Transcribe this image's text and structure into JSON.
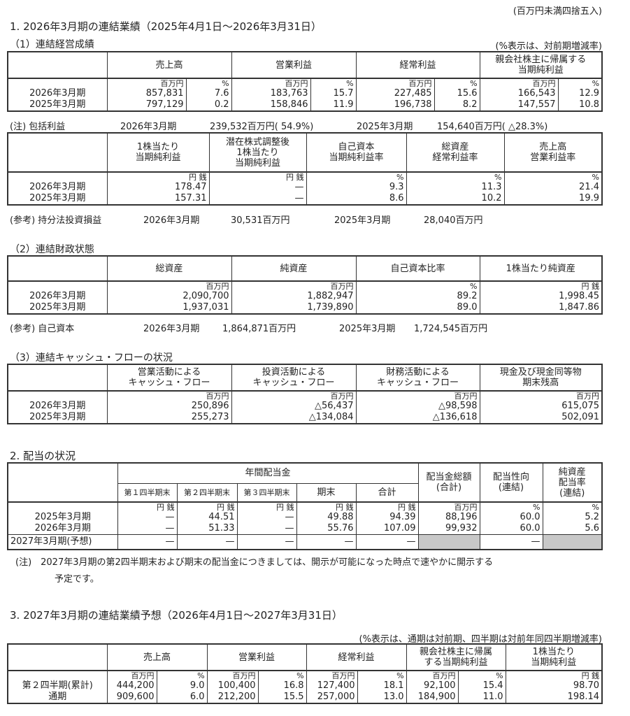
{
  "rounding_note": "(百万円未満四捨五入)",
  "s1": {
    "title": "1. 2026年3月期の連結業績（2025年4月1日～2026年3月31日）",
    "sub1": "（1）連結経営成績",
    "sub1_note": "(%表示は、対前期増減率)",
    "t1": {
      "headers": [
        "売上高",
        "営業利益",
        "経常利益",
        "親会社株主に帰属する\n当期純利益"
      ],
      "units": [
        "",
        "百万円",
        "%",
        "百万円",
        "%",
        "百万円",
        "%",
        "百万円",
        "%"
      ],
      "rows": [
        [
          "2026年3月期",
          "857,831",
          "7.6",
          "183,763",
          "15.7",
          "227,485",
          "15.6",
          "166,543",
          "12.9"
        ],
        [
          "2025年3月期",
          "797,129",
          "0.2",
          "158,846",
          "11.9",
          "196,738",
          "8.2",
          "147,557",
          "10.8"
        ]
      ]
    },
    "comprehensive": {
      "label": "(注) 包括利益",
      "p1": "2026年3月期",
      "v1": "239,532百万円( 54.9%)",
      "p2": "2025年3月期",
      "v2": "154,640百万円( △28.3%)"
    },
    "t2": {
      "headers": [
        "1株当たり\n当期純利益",
        "潜在株式調整後\n1株当たり\n当期純利益",
        "自己資本\n当期純利益率",
        "総資産\n経常利益率",
        "売上高\n営業利益率"
      ],
      "units": [
        "",
        "円 銭",
        "円 銭",
        "%",
        "%",
        "%"
      ],
      "rows": [
        [
          "2026年3月期",
          "178.47",
          "—",
          "9.3",
          "11.3",
          "21.4"
        ],
        [
          "2025年3月期",
          "157.31",
          "—",
          "8.6",
          "10.2",
          "19.9"
        ]
      ]
    },
    "equity_method": {
      "label": "(参考) 持分法投資損益",
      "p1": "2026年3月期",
      "v1": "30,531百万円",
      "p2": "2025年3月期",
      "v2": "28,040百万円"
    },
    "sub2": "（2）連結財政状態",
    "t3": {
      "headers": [
        "総資産",
        "純資産",
        "自己資本比率",
        "1株当たり純資産"
      ],
      "units": [
        "",
        "百万円",
        "百万円",
        "%",
        "円 銭"
      ],
      "rows": [
        [
          "2026年3月期",
          "2,090,700",
          "1,882,947",
          "89.2",
          "1,998.45"
        ],
        [
          "2025年3月期",
          "1,937,031",
          "1,739,890",
          "89.0",
          "1,847.86"
        ]
      ]
    },
    "equity": {
      "label": "(参考) 自己資本",
      "p1": "2026年3月期",
      "v1": "1,864,871百万円",
      "p2": "2025年3月期",
      "v2": "1,724,545百万円"
    },
    "sub3": "（3）連結キャッシュ・フローの状況",
    "t4": {
      "headers": [
        "営業活動による\nキャッシュ・フロー",
        "投資活動による\nキャッシュ・フロー",
        "財務活動による\nキャッシュ・フロー",
        "現金及び現金同等物\n期末残高"
      ],
      "units": [
        "",
        "百万円",
        "百万円",
        "百万円",
        "百万円"
      ],
      "rows": [
        [
          "2026年3月期",
          "250,896",
          "△56,437",
          "△98,598",
          "615,075"
        ],
        [
          "2025年3月期",
          "255,273",
          "△134,084",
          "△136,618",
          "502,091"
        ]
      ]
    }
  },
  "s2": {
    "title": "2. 配当の状況",
    "t5": {
      "group": "年間配当金",
      "sub": [
        "第１四半期末",
        "第２四半期末",
        "第３四半期末",
        "期末",
        "合計"
      ],
      "headers": [
        "配当金総額\n(合計)",
        "配当性向\n(連結)",
        "純資産\n配当率\n(連結)"
      ],
      "units": [
        "",
        "円 銭",
        "円 銭",
        "円 銭",
        "円 銭",
        "円 銭",
        "百万円",
        "%",
        "%"
      ],
      "rows": [
        [
          "2025年3月期",
          "—",
          "44.51",
          "—",
          "49.88",
          "94.39",
          "88,196",
          "60.0",
          "5.2"
        ],
        [
          "2026年3月期",
          "—",
          "51.33",
          "—",
          "55.76",
          "107.09",
          "99,932",
          "60.0",
          "5.6"
        ]
      ],
      "forecast": [
        "2027年3月期(予想)",
        "—",
        "—",
        "—",
        "—",
        "—",
        "",
        "—",
        ""
      ]
    },
    "note1": "(注)　2027年3月期の第2四半期末および期末の配当金につきましては、開示が可能になった時点で速やかに開示する",
    "note2": "予定です。"
  },
  "s3": {
    "title": "3. 2027年3月期の連結業績予想（2026年4月1日～2027年3月31日）",
    "note": "(%表示は、通期は対前期、四半期は対前年同四半期増減率)",
    "t6": {
      "headers": [
        "売上高",
        "営業利益",
        "経常利益",
        "親会社株主に帰属\nする当期純利益",
        "1株当たり\n当期純利益"
      ],
      "units": [
        "",
        "百万円",
        "%",
        "百万円",
        "%",
        "百万円",
        "%",
        "百万円",
        "%",
        "円 銭"
      ],
      "rows": [
        [
          "第２四半期(累計)",
          "444,200",
          "9.0",
          "100,400",
          "16.8",
          "127,400",
          "18.1",
          "92,100",
          "15.4",
          "98.70"
        ],
        [
          "通期",
          "909,600",
          "6.0",
          "212,200",
          "15.5",
          "257,000",
          "13.0",
          "184,900",
          "11.0",
          "198.14"
        ]
      ]
    }
  }
}
